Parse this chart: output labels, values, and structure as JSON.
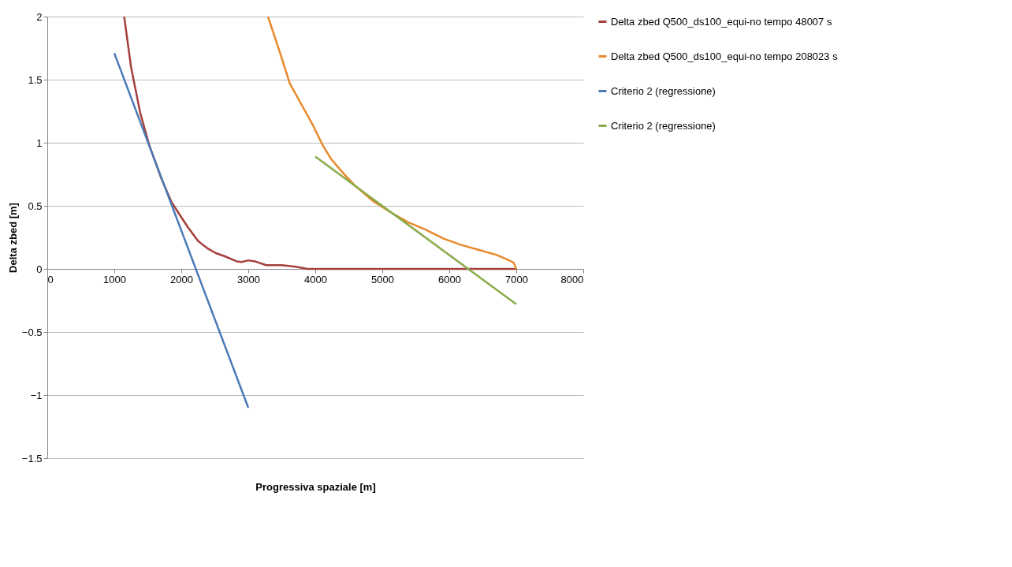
{
  "chart_data": {
    "type": "line",
    "xlabel": "Progressiva spaziale [m]",
    "ylabel": "Delta zbed [m]",
    "xlim": [
      0,
      8000
    ],
    "xticks": [
      0,
      1000,
      2000,
      3000,
      4000,
      5000,
      6000,
      7000,
      8000
    ],
    "ylim": [
      -1.5,
      2
    ],
    "yticks": [
      -1.5,
      -1,
      -0.5,
      0,
      0.5,
      1,
      1.5,
      2
    ],
    "grid": "y",
    "legend": "right",
    "line_style": "solid",
    "marker": "none",
    "series": [
      {
        "name": "Delta zbed Q500_ds100_equi-no tempo 48007 s",
        "color": "#a5403b",
        "x": [
          1148,
          1250,
          1386,
          1519,
          1700,
          1854,
          1987,
          2100,
          2252,
          2400,
          2517,
          2650,
          2826,
          2900,
          3002,
          3100,
          3267,
          3500,
          3709,
          3885,
          4500,
          5500,
          7000
        ],
        "values": [
          2,
          1.6,
          1.24,
          0.985,
          0.72,
          0.53,
          0.42,
          0.33,
          0.22,
          0.16,
          0.125,
          0.1,
          0.06,
          0.055,
          0.068,
          0.06,
          0.03,
          0.03,
          0.017,
          0,
          0,
          0,
          0
        ]
      },
      {
        "name": "Delta zbed Q500_ds100_equi-no tempo 208023 s",
        "color": "#e8892b",
        "x": [
          3294,
          3488,
          3620,
          3797,
          3974,
          4106,
          4238,
          4415,
          4592,
          4857,
          5121,
          5386,
          5651,
          5916,
          6181,
          6446,
          6711,
          6887,
          6960,
          7002
        ],
        "values": [
          2,
          1.69,
          1.47,
          1.3,
          1.13,
          0.985,
          0.87,
          0.76,
          0.66,
          0.54,
          0.45,
          0.37,
          0.31,
          0.24,
          0.19,
          0.15,
          0.11,
          0.07,
          0.05,
          0
        ]
      },
      {
        "name": "Criterio 2 (regressione)",
        "color": "#4a7ab5",
        "x": [
          1000,
          3000
        ],
        "values": [
          1.71,
          -1.1
        ]
      },
      {
        "name": "Criterio 2 (regressione)",
        "color": "#8aab4a",
        "x": [
          4000,
          7000
        ],
        "values": [
          0.89,
          -0.28
        ]
      }
    ]
  }
}
